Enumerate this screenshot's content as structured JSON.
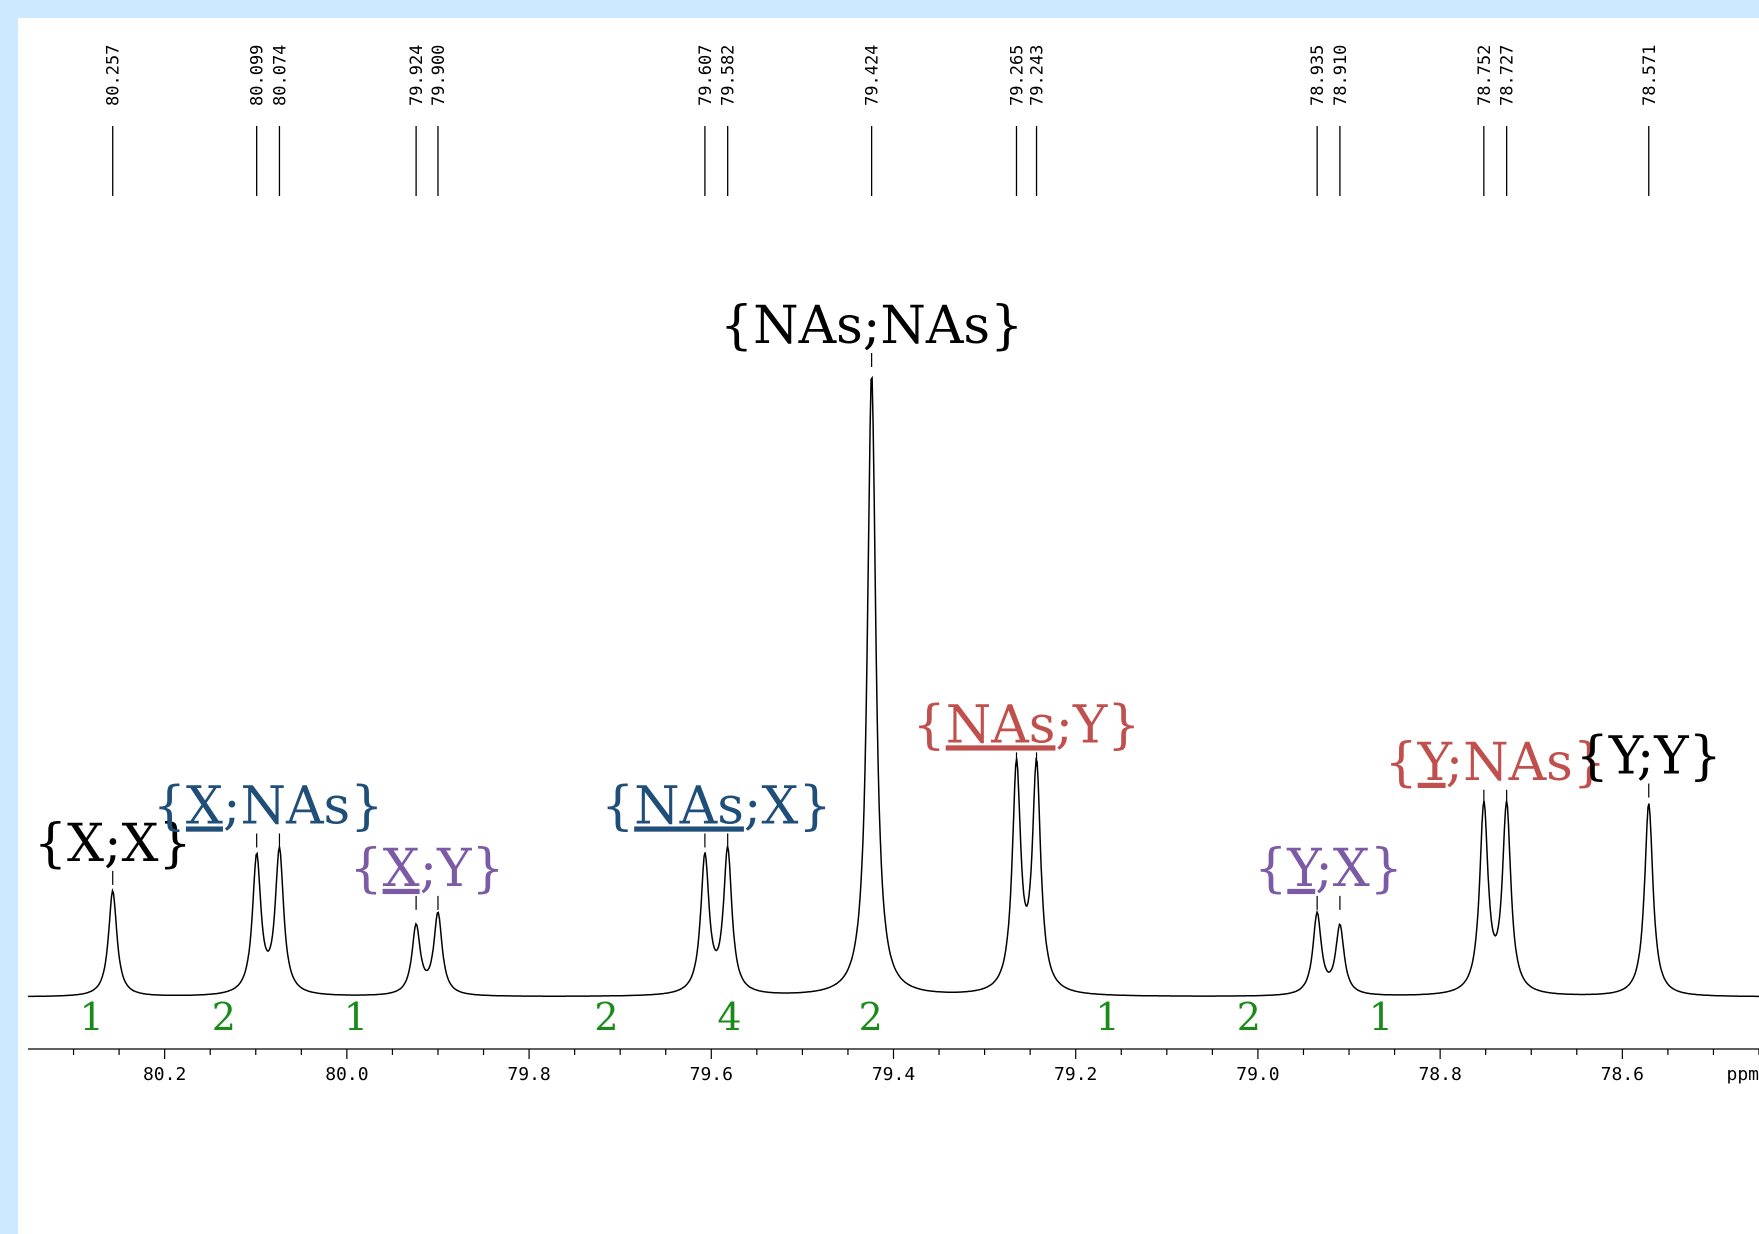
{
  "chart_data": {
    "type": "line",
    "title": "",
    "xlabel": "ppm",
    "ylabel": "",
    "xlim": [
      80.35,
      78.45
    ],
    "x_reversed": true,
    "x_ticks": [
      80.2,
      80.0,
      79.8,
      79.6,
      79.4,
      79.2,
      79.0,
      78.8,
      78.6
    ],
    "x_tick_labels": [
      "80.2",
      "80.0",
      "79.8",
      "79.6",
      "79.4",
      "79.2",
      "79.0",
      "78.8",
      "78.6"
    ],
    "grid": false,
    "peak_labels": [
      "80.257",
      "80.099",
      "80.074",
      "79.924",
      "79.900",
      "79.607",
      "79.582",
      "79.424",
      "79.265",
      "79.243",
      "78.935",
      "78.910",
      "78.752",
      "78.727",
      "78.571"
    ],
    "peaks": [
      {
        "ppm": 80.257,
        "height": 0.17
      },
      {
        "ppm": 80.099,
        "height": 0.22
      },
      {
        "ppm": 80.074,
        "height": 0.23
      },
      {
        "ppm": 79.924,
        "height": 0.11
      },
      {
        "ppm": 79.9,
        "height": 0.13
      },
      {
        "ppm": 79.607,
        "height": 0.22
      },
      {
        "ppm": 79.582,
        "height": 0.23
      },
      {
        "ppm": 79.424,
        "height": 1.0
      },
      {
        "ppm": 79.265,
        "height": 0.36
      },
      {
        "ppm": 79.243,
        "height": 0.36
      },
      {
        "ppm": 78.935,
        "height": 0.13
      },
      {
        "ppm": 78.91,
        "height": 0.11
      },
      {
        "ppm": 78.752,
        "height": 0.3
      },
      {
        "ppm": 78.727,
        "height": 0.3
      },
      {
        "ppm": 78.571,
        "height": 0.31
      }
    ],
    "assignments": [
      {
        "prefix": "{",
        "underlined": "",
        "suffix": "X;X}",
        "color": "#000000",
        "peaks": [
          "80.257"
        ]
      },
      {
        "prefix": "{",
        "underlined": "X",
        "suffix": ";NAs}",
        "color": "#1f4e79",
        "peaks": [
          "80.099",
          "80.074"
        ]
      },
      {
        "prefix": "{",
        "underlined": "X",
        "suffix": ";Y}",
        "color": "#7b5aa6",
        "peaks": [
          "79.924",
          "79.900"
        ]
      },
      {
        "prefix": "{",
        "underlined": "NAs",
        "suffix": ";X}",
        "color": "#1f4e79",
        "peaks": [
          "79.607",
          "79.582"
        ]
      },
      {
        "prefix": "{",
        "underlined": "",
        "suffix": "NAs;NAs}",
        "color": "#000000",
        "peaks": [
          "79.424"
        ]
      },
      {
        "prefix": "{",
        "underlined": "NAs",
        "suffix": ";Y}",
        "color": "#c0504d",
        "peaks": [
          "79.265",
          "79.243"
        ]
      },
      {
        "prefix": "{",
        "underlined": "Y",
        "suffix": ";X}",
        "color": "#7b5aa6",
        "peaks": [
          "78.935",
          "78.910"
        ]
      },
      {
        "prefix": "{",
        "underlined": "Y",
        "suffix": ";NAs}",
        "color": "#c0504d",
        "peaks": [
          "78.752",
          "78.727"
        ]
      },
      {
        "prefix": "{",
        "underlined": "",
        "suffix": "Y;Y}",
        "color": "#000000",
        "peaks": [
          "78.571"
        ]
      }
    ],
    "integrals": [
      {
        "value": "1",
        "ppm": 80.28
      },
      {
        "value": "2",
        "ppm": 80.135
      },
      {
        "value": "1",
        "ppm": 79.99
      },
      {
        "value": "2",
        "ppm": 79.715
      },
      {
        "value": "4",
        "ppm": 79.58
      },
      {
        "value": "2",
        "ppm": 79.425
      },
      {
        "value": "1",
        "ppm": 79.165
      },
      {
        "value": "2",
        "ppm": 79.01
      },
      {
        "value": "1",
        "ppm": 78.865
      }
    ]
  },
  "colors": {
    "background": "#cde9ff",
    "integral_text": "#1a8a1a",
    "blue_label": "#1f4e79",
    "purple_label": "#7b5aa6",
    "red_label": "#c0504d"
  }
}
